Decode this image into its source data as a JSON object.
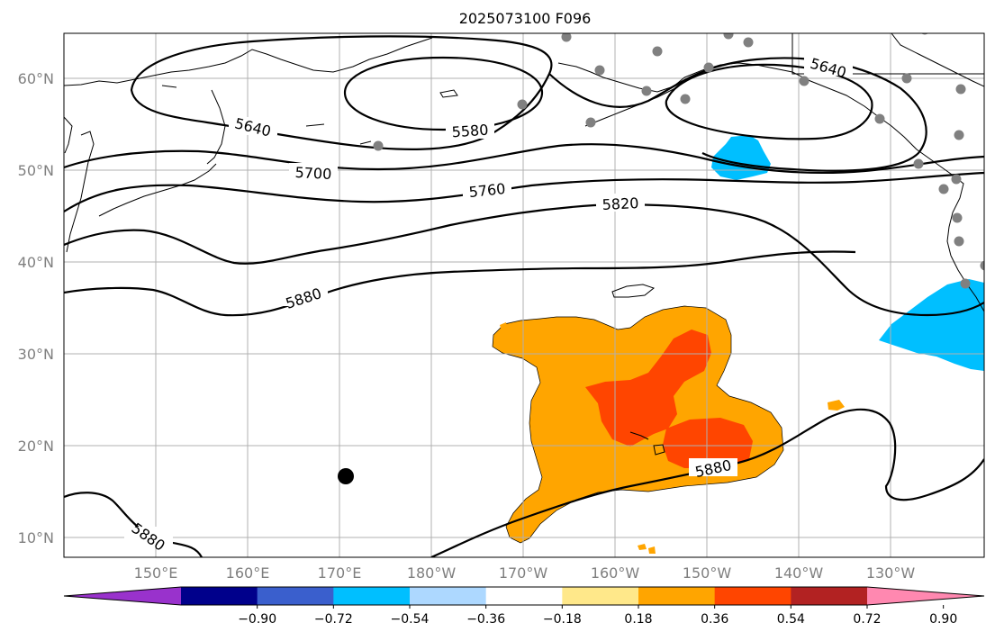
{
  "title": "2025073100 F096",
  "map": {
    "lat_ticks": [
      "60°N",
      "50°N",
      "40°N",
      "30°N",
      "20°N",
      "10°N"
    ],
    "lon_ticks": [
      "150°E",
      "160°E",
      "170°E",
      "180°W",
      "170°W",
      "160°W",
      "150°W",
      "140°W",
      "130°W"
    ],
    "grid": true
  },
  "contours": {
    "labels": [
      "5580",
      "5640",
      "5640",
      "5700",
      "5760",
      "5820",
      "5880",
      "5880",
      "5880"
    ],
    "interval": 60
  },
  "storm_marker": {
    "lat": 16.8,
    "lon": 169.5
  },
  "colorbar": {
    "ticks": [
      "−0.90",
      "−0.72",
      "−0.54",
      "−0.36",
      "−0.18",
      "0.18",
      "0.36",
      "0.54",
      "0.72",
      "0.90"
    ],
    "colors": [
      "#9932cc",
      "#00008b",
      "#3a5fcd",
      "#00bfff",
      "#add8ff",
      "#ffffff",
      "#ffe88a",
      "#ffa500",
      "#ff4500",
      "#b22222",
      "#ff88b0"
    ]
  },
  "colors": {
    "positive_anomaly": "#ffa500",
    "strong_positive": "#ff4500",
    "negative_anomaly": "#00bfff",
    "stations": "#808080"
  }
}
